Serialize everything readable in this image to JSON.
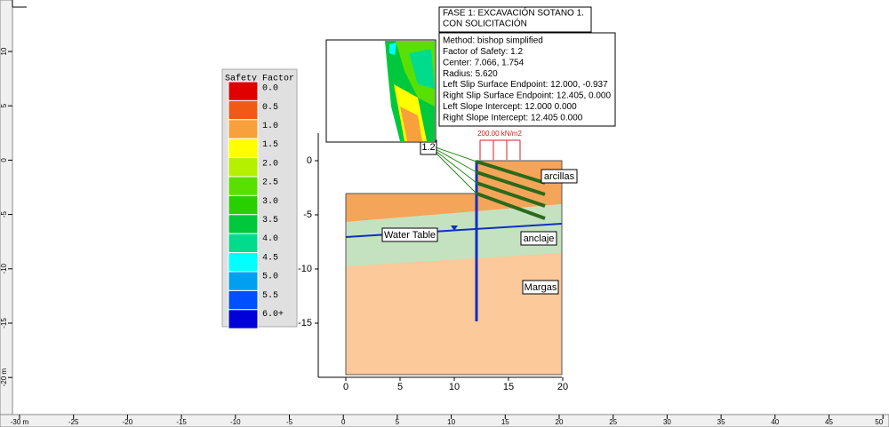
{
  "rulers": {
    "x": [
      "-30 m",
      "-25",
      "-20",
      "-15",
      "-10",
      "-5",
      "0",
      "5",
      "10",
      "15",
      "20",
      "25",
      "30",
      "35",
      "40",
      "45",
      "50"
    ],
    "y": [
      "10",
      "5",
      "0",
      "-5",
      "-10",
      "-15",
      "-20 m"
    ]
  },
  "legend": {
    "title": "Safety Factor",
    "labels": [
      "0.0",
      "0.5",
      "1.0",
      "1.5",
      "2.0",
      "2.5",
      "3.0",
      "3.5",
      "4.0",
      "4.5",
      "5.0",
      "5.5",
      "6.0+"
    ],
    "colors": [
      "#e00000",
      "#f05a14",
      "#f8a03c",
      "#ffff00",
      "#b4f000",
      "#5ae000",
      "#28d000",
      "#00c83c",
      "#00dc8c",
      "#00ffff",
      "#00a0f0",
      "#0050ff",
      "#0000d8"
    ]
  },
  "header": {
    "lines": [
      "FASE 1: EXCAVACIÓN SOTANO 1.",
      "CON SOLICITACIÓN"
    ]
  },
  "info": {
    "lines": [
      "Method: bishop simplified",
      "Factor of Safety: 1.2",
      "Center: 7.066, 1.754",
      "Radius: 5.620",
      "Left Slip Surface Endpoint: 12.000, -0.937",
      "Right Slip Surface Endpoint: 12.405, 0.000",
      "Left Slope Intercept: 12.000 0.000",
      "Right Slope Intercept: 12.405 0.000"
    ]
  },
  "model": {
    "y_ticks": [
      "0",
      "-5",
      "-10",
      "-15"
    ],
    "x_ticks": [
      "0",
      "5",
      "10",
      "15",
      "20"
    ],
    "fs_label": "1.2",
    "load_label": "200.00 kN/m2",
    "water_label": "Water Table",
    "materials": [
      "arcillas",
      "anclaje",
      "Margas"
    ]
  }
}
